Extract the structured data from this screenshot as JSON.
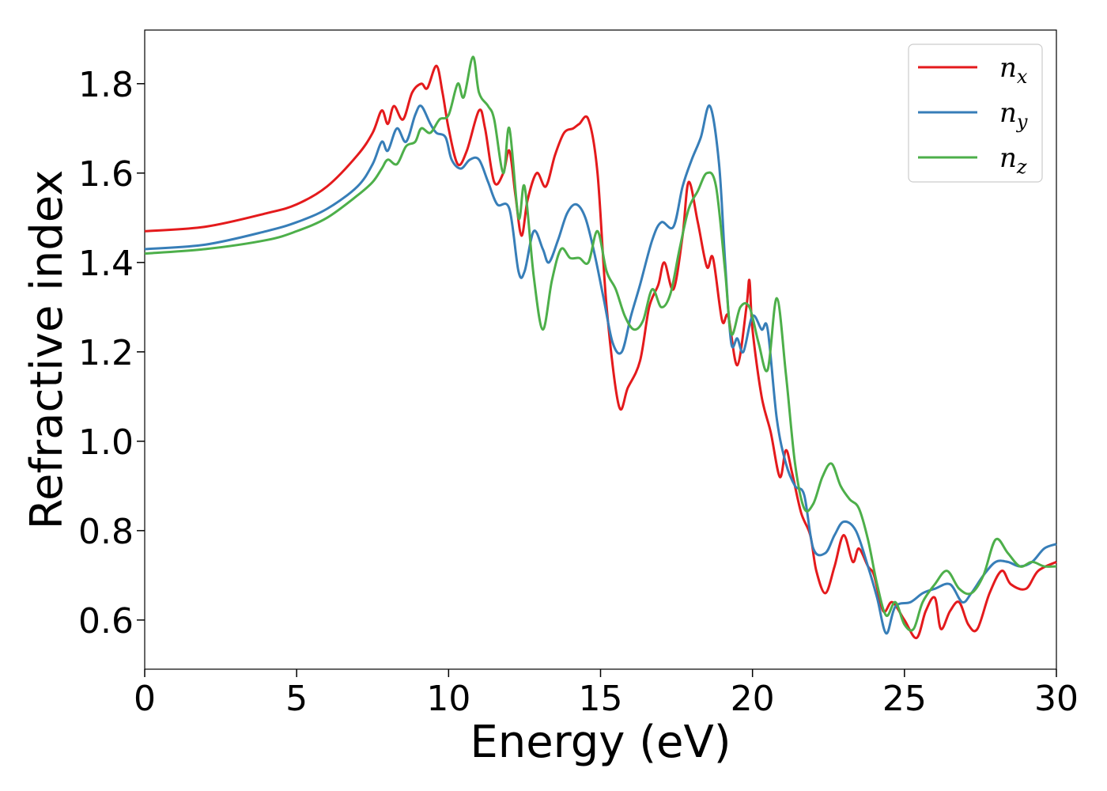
{
  "chart_data": {
    "type": "line",
    "title": "",
    "xlabel": "Energy (eV)",
    "ylabel": "Refractive index",
    "xlim": [
      0,
      30
    ],
    "ylim": [
      0.49,
      1.92
    ],
    "xticks": [
      0,
      5,
      10,
      15,
      20,
      25,
      30
    ],
    "xtick_labels": [
      "0",
      "5",
      "10",
      "15",
      "20",
      "25",
      "30"
    ],
    "yticks": [
      0.6,
      0.8,
      1.0,
      1.2,
      1.4,
      1.6,
      1.8
    ],
    "ytick_labels": [
      "0.6",
      "0.8",
      "1.0",
      "1.2",
      "1.4",
      "1.6",
      "1.8"
    ],
    "grid": false,
    "legend_position": "top-right",
    "series": [
      {
        "name": "n_x",
        "label_main": "n",
        "label_sub": "x",
        "color": "#e41a1c",
        "points": [
          [
            0,
            1.47
          ],
          [
            2,
            1.48
          ],
          [
            4,
            1.51
          ],
          [
            5,
            1.53
          ],
          [
            6,
            1.57
          ],
          [
            7,
            1.64
          ],
          [
            7.5,
            1.69
          ],
          [
            7.8,
            1.74
          ],
          [
            8.0,
            1.71
          ],
          [
            8.2,
            1.75
          ],
          [
            8.5,
            1.72
          ],
          [
            8.8,
            1.78
          ],
          [
            9.1,
            1.8
          ],
          [
            9.3,
            1.79
          ],
          [
            9.6,
            1.84
          ],
          [
            9.8,
            1.78
          ],
          [
            10.0,
            1.7
          ],
          [
            10.3,
            1.62
          ],
          [
            10.6,
            1.65
          ],
          [
            11.0,
            1.74
          ],
          [
            11.2,
            1.7
          ],
          [
            11.5,
            1.58
          ],
          [
            11.8,
            1.6
          ],
          [
            12.0,
            1.65
          ],
          [
            12.2,
            1.55
          ],
          [
            12.4,
            1.46
          ],
          [
            12.6,
            1.54
          ],
          [
            12.9,
            1.6
          ],
          [
            13.2,
            1.57
          ],
          [
            13.5,
            1.64
          ],
          [
            13.8,
            1.69
          ],
          [
            14.1,
            1.7
          ],
          [
            14.3,
            1.71
          ],
          [
            14.6,
            1.72
          ],
          [
            14.9,
            1.6
          ],
          [
            15.2,
            1.3
          ],
          [
            15.6,
            1.08
          ],
          [
            15.9,
            1.12
          ],
          [
            16.3,
            1.18
          ],
          [
            16.6,
            1.3
          ],
          [
            16.9,
            1.35
          ],
          [
            17.1,
            1.4
          ],
          [
            17.4,
            1.34
          ],
          [
            17.7,
            1.46
          ],
          [
            17.9,
            1.58
          ],
          [
            18.2,
            1.49
          ],
          [
            18.5,
            1.39
          ],
          [
            18.7,
            1.41
          ],
          [
            19.0,
            1.27
          ],
          [
            19.2,
            1.28
          ],
          [
            19.5,
            1.17
          ],
          [
            19.8,
            1.3
          ],
          [
            19.9,
            1.36
          ],
          [
            20.0,
            1.25
          ],
          [
            20.3,
            1.1
          ],
          [
            20.6,
            1.02
          ],
          [
            20.9,
            0.92
          ],
          [
            21.1,
            0.98
          ],
          [
            21.3,
            0.93
          ],
          [
            21.6,
            0.84
          ],
          [
            21.9,
            0.79
          ],
          [
            22.1,
            0.71
          ],
          [
            22.4,
            0.66
          ],
          [
            22.7,
            0.72
          ],
          [
            23.0,
            0.79
          ],
          [
            23.3,
            0.73
          ],
          [
            23.5,
            0.76
          ],
          [
            23.8,
            0.72
          ],
          [
            24.0,
            0.7
          ],
          [
            24.3,
            0.62
          ],
          [
            24.6,
            0.64
          ],
          [
            25.0,
            0.6
          ],
          [
            25.4,
            0.56
          ],
          [
            25.7,
            0.62
          ],
          [
            26.0,
            0.65
          ],
          [
            26.2,
            0.58
          ],
          [
            26.5,
            0.62
          ],
          [
            26.8,
            0.64
          ],
          [
            27.1,
            0.59
          ],
          [
            27.4,
            0.58
          ],
          [
            27.8,
            0.66
          ],
          [
            28.2,
            0.71
          ],
          [
            28.5,
            0.68
          ],
          [
            29.0,
            0.67
          ],
          [
            29.4,
            0.71
          ],
          [
            30.0,
            0.73
          ]
        ]
      },
      {
        "name": "n_y",
        "label_main": "n",
        "label_sub": "y",
        "color": "#377eb8",
        "points": [
          [
            0,
            1.43
          ],
          [
            2,
            1.44
          ],
          [
            4,
            1.47
          ],
          [
            5,
            1.49
          ],
          [
            6,
            1.52
          ],
          [
            7,
            1.57
          ],
          [
            7.5,
            1.62
          ],
          [
            7.8,
            1.67
          ],
          [
            8.0,
            1.65
          ],
          [
            8.3,
            1.7
          ],
          [
            8.6,
            1.67
          ],
          [
            8.9,
            1.73
          ],
          [
            9.1,
            1.75
          ],
          [
            9.4,
            1.71
          ],
          [
            9.6,
            1.69
          ],
          [
            9.9,
            1.68
          ],
          [
            10.1,
            1.63
          ],
          [
            10.4,
            1.61
          ],
          [
            10.7,
            1.63
          ],
          [
            11.0,
            1.63
          ],
          [
            11.3,
            1.58
          ],
          [
            11.6,
            1.53
          ],
          [
            12.0,
            1.52
          ],
          [
            12.3,
            1.38
          ],
          [
            12.5,
            1.38
          ],
          [
            12.8,
            1.47
          ],
          [
            13.1,
            1.43
          ],
          [
            13.3,
            1.4
          ],
          [
            13.6,
            1.45
          ],
          [
            13.9,
            1.51
          ],
          [
            14.2,
            1.53
          ],
          [
            14.5,
            1.5
          ],
          [
            14.8,
            1.42
          ],
          [
            15.1,
            1.32
          ],
          [
            15.4,
            1.22
          ],
          [
            15.7,
            1.2
          ],
          [
            16.0,
            1.28
          ],
          [
            16.3,
            1.35
          ],
          [
            16.7,
            1.45
          ],
          [
            17.0,
            1.49
          ],
          [
            17.4,
            1.48
          ],
          [
            17.7,
            1.57
          ],
          [
            18.0,
            1.63
          ],
          [
            18.3,
            1.68
          ],
          [
            18.6,
            1.75
          ],
          [
            18.9,
            1.62
          ],
          [
            19.1,
            1.4
          ],
          [
            19.3,
            1.22
          ],
          [
            19.5,
            1.23
          ],
          [
            19.7,
            1.2
          ],
          [
            20.0,
            1.28
          ],
          [
            20.3,
            1.25
          ],
          [
            20.5,
            1.25
          ],
          [
            20.8,
            1.05
          ],
          [
            21.1,
            0.95
          ],
          [
            21.4,
            0.9
          ],
          [
            21.7,
            0.88
          ],
          [
            22.0,
            0.76
          ],
          [
            22.4,
            0.75
          ],
          [
            22.7,
            0.79
          ],
          [
            23.0,
            0.82
          ],
          [
            23.4,
            0.8
          ],
          [
            23.8,
            0.72
          ],
          [
            24.1,
            0.65
          ],
          [
            24.4,
            0.57
          ],
          [
            24.7,
            0.63
          ],
          [
            25.2,
            0.64
          ],
          [
            25.6,
            0.66
          ],
          [
            26.0,
            0.67
          ],
          [
            26.5,
            0.68
          ],
          [
            26.9,
            0.64
          ],
          [
            27.2,
            0.66
          ],
          [
            27.6,
            0.7
          ],
          [
            28.0,
            0.73
          ],
          [
            28.4,
            0.73
          ],
          [
            28.8,
            0.72
          ],
          [
            29.2,
            0.73
          ],
          [
            29.6,
            0.76
          ],
          [
            30.0,
            0.77
          ]
        ]
      },
      {
        "name": "n_z",
        "label_main": "n",
        "label_sub": "z",
        "color": "#4daf4a",
        "points": [
          [
            0,
            1.42
          ],
          [
            2,
            1.43
          ],
          [
            4,
            1.45
          ],
          [
            5,
            1.47
          ],
          [
            6,
            1.5
          ],
          [
            7,
            1.55
          ],
          [
            7.5,
            1.58
          ],
          [
            7.8,
            1.61
          ],
          [
            8.0,
            1.63
          ],
          [
            8.3,
            1.62
          ],
          [
            8.6,
            1.66
          ],
          [
            8.9,
            1.67
          ],
          [
            9.1,
            1.7
          ],
          [
            9.4,
            1.69
          ],
          [
            9.7,
            1.72
          ],
          [
            10.0,
            1.73
          ],
          [
            10.3,
            1.8
          ],
          [
            10.5,
            1.77
          ],
          [
            10.8,
            1.86
          ],
          [
            11.0,
            1.78
          ],
          [
            11.3,
            1.75
          ],
          [
            11.5,
            1.72
          ],
          [
            11.8,
            1.6
          ],
          [
            12.0,
            1.7
          ],
          [
            12.3,
            1.5
          ],
          [
            12.5,
            1.57
          ],
          [
            12.8,
            1.37
          ],
          [
            13.1,
            1.25
          ],
          [
            13.4,
            1.36
          ],
          [
            13.7,
            1.43
          ],
          [
            14.0,
            1.41
          ],
          [
            14.3,
            1.41
          ],
          [
            14.6,
            1.4
          ],
          [
            14.9,
            1.47
          ],
          [
            15.2,
            1.38
          ],
          [
            15.5,
            1.34
          ],
          [
            15.8,
            1.28
          ],
          [
            16.1,
            1.25
          ],
          [
            16.4,
            1.27
          ],
          [
            16.7,
            1.34
          ],
          [
            17.0,
            1.3
          ],
          [
            17.3,
            1.33
          ],
          [
            17.6,
            1.43
          ],
          [
            17.9,
            1.52
          ],
          [
            18.2,
            1.56
          ],
          [
            18.5,
            1.6
          ],
          [
            18.8,
            1.57
          ],
          [
            19.1,
            1.38
          ],
          [
            19.3,
            1.24
          ],
          [
            19.6,
            1.3
          ],
          [
            19.9,
            1.3
          ],
          [
            20.2,
            1.22
          ],
          [
            20.5,
            1.16
          ],
          [
            20.8,
            1.32
          ],
          [
            21.1,
            1.15
          ],
          [
            21.4,
            0.95
          ],
          [
            21.7,
            0.85
          ],
          [
            22.0,
            0.86
          ],
          [
            22.3,
            0.92
          ],
          [
            22.6,
            0.95
          ],
          [
            22.9,
            0.9
          ],
          [
            23.2,
            0.87
          ],
          [
            23.5,
            0.85
          ],
          [
            23.8,
            0.78
          ],
          [
            24.1,
            0.68
          ],
          [
            24.4,
            0.61
          ],
          [
            24.7,
            0.64
          ],
          [
            25.0,
            0.59
          ],
          [
            25.3,
            0.58
          ],
          [
            25.6,
            0.64
          ],
          [
            26.0,
            0.68
          ],
          [
            26.4,
            0.71
          ],
          [
            26.8,
            0.67
          ],
          [
            27.2,
            0.66
          ],
          [
            27.6,
            0.7
          ],
          [
            28.0,
            0.78
          ],
          [
            28.4,
            0.75
          ],
          [
            28.8,
            0.72
          ],
          [
            29.2,
            0.73
          ],
          [
            29.6,
            0.72
          ],
          [
            30.0,
            0.72
          ]
        ]
      }
    ]
  }
}
